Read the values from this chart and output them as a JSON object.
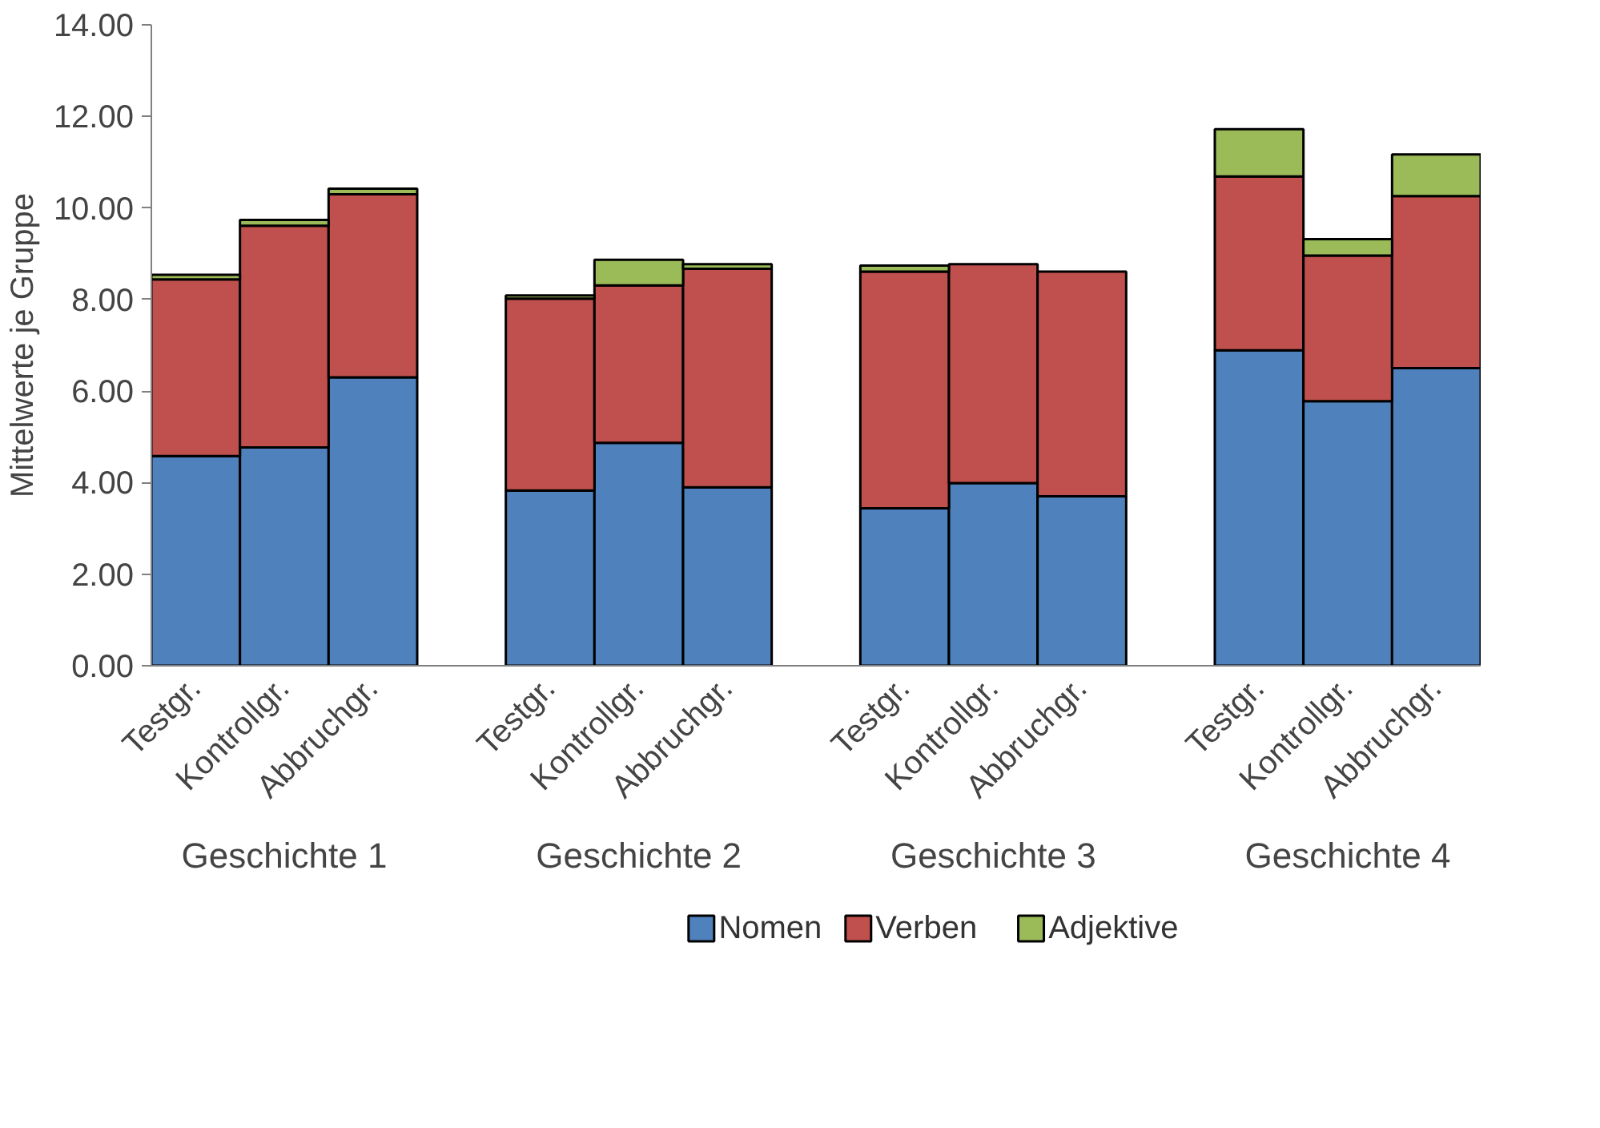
{
  "chart_data": {
    "type": "bar",
    "stacked": true,
    "ylabel": "Mittelwerte je Gruppe",
    "categories": [
      "Testgr.",
      "Kontrollgr.",
      "Abbruchgr.",
      "Testgr.",
      "Kontrollgr.",
      "Abbruchgr.",
      "Testgr.",
      "Kontrollgr.",
      "Abbruchgr.",
      "Testgr.",
      "Kontrollgr.",
      "Abbruchgr."
    ],
    "series": [
      {
        "name": "Nomen",
        "color": "#4f81bd",
        "values": [
          4.58,
          4.77,
          6.3,
          3.83,
          4.87,
          3.9,
          3.44,
          3.99,
          3.7,
          6.89,
          5.78,
          6.5
        ]
      },
      {
        "name": "Verben",
        "color": "#c0504d",
        "values": [
          3.86,
          4.84,
          4.0,
          4.19,
          3.44,
          4.77,
          5.17,
          4.78,
          4.91,
          3.8,
          3.18,
          3.76
        ]
      },
      {
        "name": "Adjektive",
        "color": "#9bbb59",
        "values": [
          0.1,
          0.13,
          0.12,
          0.07,
          0.56,
          0.1,
          0.13,
          0,
          0,
          1.03,
          0.36,
          0.91
        ]
      }
    ],
    "annotations": [
      "Geschichte 1",
      "Geschichte 2",
      "Geschichte 3",
      "Geschichte 4"
    ],
    "ylim": [
      0,
      14
    ],
    "yticks": [
      {
        "value": 0,
        "label": "0.00"
      },
      {
        "value": 2,
        "label": "2.00"
      },
      {
        "value": 4,
        "label": "4.00"
      },
      {
        "value": 6,
        "label": "6.00"
      },
      {
        "value": 8,
        "label": "8.00"
      },
      {
        "value": 10,
        "label": "10.00"
      },
      {
        "value": 12,
        "label": "12.00"
      },
      {
        "value": 14,
        "label": "14.00"
      }
    ],
    "grid": false,
    "legend": "bottom"
  }
}
